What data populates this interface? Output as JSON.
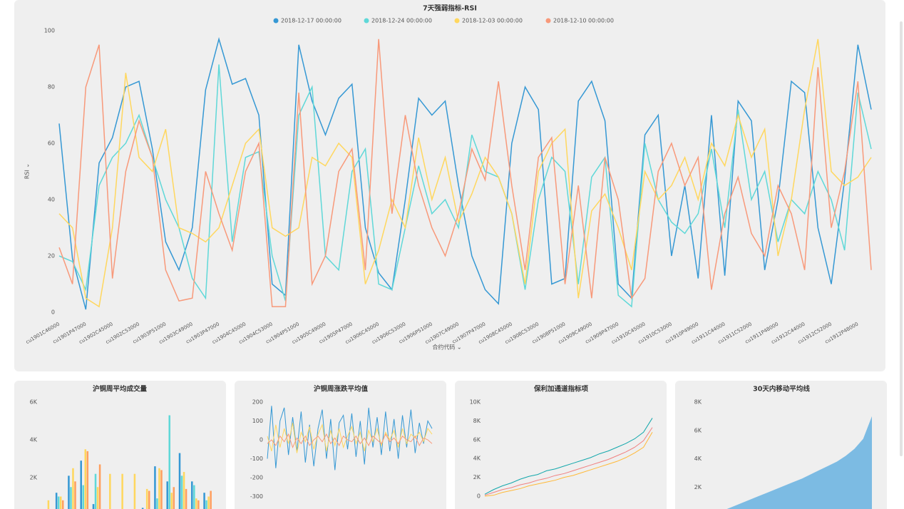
{
  "chart_data": [
    {
      "type": "line",
      "title": "7天强弱指标-RSI",
      "x_label": "合约代码 ⌄",
      "y_label": "RSI ⌄",
      "categories": [
        "cu1901C46000",
        null,
        "cu1901P47000",
        null,
        "cu1902C45000",
        null,
        "cu1902C53000",
        null,
        "cu1903P51000",
        null,
        "cu1903C49000",
        null,
        "cu1903P47000",
        null,
        "cu1904C45000",
        null,
        "cu1904C53000",
        null,
        "cu1904P51000",
        null,
        "cu1905C49000",
        null,
        "cu1905P47000",
        null,
        "cu1906C45000",
        null,
        "cu1906C53000",
        null,
        "cu1906P51000",
        null,
        "cu1907C49000",
        null,
        "cu1907P47000",
        null,
        "cu1908C45000",
        null,
        "cu1908C53000",
        null,
        "cu1908P51000",
        null,
        "cu1909C49000",
        null,
        "cu1909P47000",
        null,
        "cu1910C45000",
        null,
        "cu1910C53000",
        null,
        "cu1910P49000",
        null,
        "cu1911C44000",
        null,
        "cu1911C52000",
        null,
        "cu1911P48000",
        null,
        "cu1912C44000",
        null,
        "cu1912C52000",
        null,
        "cu1912P48000",
        null
      ],
      "series": [
        {
          "name": "2018-12-17 00:00:00",
          "color": "#3598d4",
          "values": [
            67,
            19,
            1,
            53,
            62,
            80,
            82,
            58,
            25,
            15,
            30,
            79,
            97,
            81,
            83,
            70,
            10,
            6,
            95,
            75,
            63,
            76,
            81,
            30,
            14,
            8,
            40,
            76,
            70,
            75,
            45,
            20,
            8,
            3,
            60,
            80,
            72,
            10,
            12,
            75,
            82,
            68,
            10,
            5,
            63,
            70,
            20,
            45,
            12,
            70,
            13,
            75,
            68,
            15,
            40,
            82,
            78,
            30,
            10,
            47,
            95,
            72
          ]
        },
        {
          "name": "2018-12-24 00:00:00",
          "color": "#5fd8d8",
          "values": [
            20,
            18,
            8,
            45,
            55,
            60,
            70,
            55,
            40,
            30,
            12,
            5,
            88,
            25,
            55,
            57,
            20,
            4,
            70,
            80,
            20,
            15,
            50,
            58,
            10,
            8,
            30,
            52,
            35,
            40,
            30,
            63,
            50,
            48,
            35,
            8,
            40,
            55,
            50,
            10,
            48,
            55,
            6,
            2,
            60,
            40,
            32,
            28,
            35,
            58,
            30,
            72,
            40,
            50,
            25,
            40,
            35,
            50,
            40,
            22,
            78,
            58
          ]
        },
        {
          "name": "2018-12-03 00:00:00",
          "color": "#ffd75e",
          "values": [
            35,
            30,
            5,
            2,
            30,
            85,
            55,
            50,
            65,
            30,
            28,
            25,
            30,
            45,
            60,
            65,
            30,
            27,
            30,
            55,
            52,
            60,
            55,
            10,
            22,
            40,
            30,
            62,
            40,
            55,
            32,
            42,
            55,
            48,
            35,
            10,
            50,
            60,
            65,
            5,
            36,
            42,
            30,
            15,
            50,
            40,
            45,
            55,
            40,
            60,
            52,
            70,
            55,
            65,
            20,
            40,
            72,
            97,
            50,
            45,
            48,
            55
          ]
        },
        {
          "name": "2018-12-10 00:00:00",
          "color": "#f8997a",
          "values": [
            23,
            10,
            80,
            95,
            12,
            50,
            68,
            55,
            15,
            4,
            5,
            50,
            35,
            22,
            50,
            60,
            2,
            2,
            78,
            10,
            20,
            50,
            58,
            15,
            97,
            35,
            70,
            45,
            30,
            20,
            35,
            58,
            47,
            82,
            45,
            15,
            55,
            62,
            10,
            45,
            5,
            55,
            40,
            5,
            12,
            50,
            60,
            45,
            55,
            8,
            35,
            48,
            28,
            20,
            45,
            35,
            15,
            87,
            30,
            50,
            82,
            15
          ]
        }
      ],
      "ylim": [
        0,
        100
      ],
      "yticks": [
        0,
        20,
        40,
        60,
        80,
        100
      ],
      "legend": "top"
    },
    {
      "type": "bar",
      "title": "沪铜周平均成交量",
      "categories": [
        null,
        null,
        null,
        null,
        null,
        null,
        null,
        null,
        null,
        null,
        null,
        null,
        null,
        null
      ],
      "series": [
        {
          "color": "#3598d4",
          "values": [
            100,
            1200,
            2100,
            2900,
            600,
            100,
            0,
            0,
            400,
            2600,
            1800,
            3300,
            1800,
            1200
          ]
        },
        {
          "color": "#5fd8d8",
          "values": [
            300,
            1000,
            1500,
            1600,
            2200,
            0,
            0,
            0,
            300,
            900,
            5300,
            2100,
            1600,
            800
          ]
        },
        {
          "color": "#ffd75e",
          "values": [
            800,
            1000,
            2500,
            3500,
            1500,
            2200,
            2200,
            2200,
            1400,
            2500,
            1200,
            2300,
            900,
            1000
          ]
        },
        {
          "color": "#ff9f5e",
          "values": [
            0,
            800,
            1800,
            3400,
            2700,
            0,
            0,
            0,
            1300,
            2400,
            1500,
            1400,
            800,
            1300
          ]
        }
      ],
      "ylim": [
        0,
        6000
      ],
      "yticks": [
        {
          "value": 2000,
          "label": "2K"
        },
        {
          "value": 4000,
          "label": "4K"
        },
        {
          "value": 6000,
          "label": "6K"
        }
      ]
    },
    {
      "type": "line",
      "title": "沪铜周涨跌平均值",
      "categories": [
        null,
        null,
        null,
        null,
        null,
        null,
        null,
        null,
        null,
        null,
        null,
        null,
        null,
        null,
        null,
        null,
        null,
        null,
        null,
        null,
        null,
        null,
        null,
        null,
        null,
        null,
        null,
        null,
        null,
        null,
        null,
        null,
        null,
        null,
        null,
        null,
        null,
        null,
        null,
        null
      ],
      "series": [
        {
          "color": "#3598d4",
          "values": [
            -100,
            180,
            -150,
            100,
            170,
            -80,
            120,
            -60,
            150,
            -120,
            80,
            -140,
            60,
            160,
            -100,
            110,
            -160,
            90,
            130,
            -50,
            140,
            -90,
            100,
            -130,
            170,
            -40,
            120,
            -80,
            150,
            -60,
            110,
            -100,
            130,
            -40,
            160,
            -70,
            90,
            -20,
            100,
            60
          ]
        },
        {
          "color": "#ffd75e",
          "values": [
            20,
            -60,
            80,
            -40,
            60,
            -20,
            90,
            -70,
            40,
            -10,
            70,
            -50,
            30,
            80,
            -60,
            50,
            -30,
            60,
            -40,
            20,
            70,
            -20,
            40,
            -60,
            50,
            -10,
            60,
            -30,
            40,
            0,
            50,
            -40,
            60,
            -20,
            30,
            10,
            40,
            -10,
            60,
            30
          ]
        },
        {
          "color": "#f8997a",
          "values": [
            -20,
            0,
            -30,
            20,
            -10,
            30,
            -40,
            10,
            -20,
            20,
            -30,
            0,
            20,
            -10,
            30,
            -20,
            10,
            -30,
            20,
            0,
            -10,
            20,
            -20,
            10,
            -30,
            20,
            0,
            -20,
            30,
            -10,
            10,
            -20,
            20,
            0,
            -10,
            20,
            -30,
            10,
            0,
            -20
          ]
        }
      ],
      "ylim": [
        -400,
        200
      ],
      "yticks": [
        -300,
        -200,
        -100,
        0,
        100,
        200
      ]
    },
    {
      "type": "line",
      "title": "保利加通道指标项",
      "categories": [
        null,
        null,
        null,
        null,
        null,
        null,
        null,
        null,
        null,
        null,
        null,
        null,
        null,
        null,
        null,
        null,
        null,
        null,
        null,
        null
      ],
      "series": [
        {
          "color": "#11a7ab",
          "values": [
            200,
            700,
            1100,
            1400,
            1800,
            2100,
            2300,
            2700,
            2900,
            3200,
            3500,
            3800,
            4100,
            4500,
            4800,
            5200,
            5600,
            6100,
            6800,
            8300
          ]
        },
        {
          "color": "#f08080",
          "values": [
            100,
            400,
            700,
            900,
            1200,
            1400,
            1700,
            1900,
            2200,
            2400,
            2700,
            3000,
            3300,
            3600,
            3900,
            4300,
            4700,
            5200,
            5900,
            7300
          ]
        },
        {
          "color": "#ffb938",
          "values": [
            0,
            100,
            400,
            600,
            800,
            1100,
            1300,
            1500,
            1700,
            2000,
            2200,
            2500,
            2800,
            3100,
            3400,
            3700,
            4100,
            4600,
            5200,
            6800
          ]
        }
      ],
      "ylim": [
        0,
        10000
      ],
      "yticks": [
        0,
        {
          "value": 2000,
          "label": "2K"
        },
        {
          "value": 4000,
          "label": "4K"
        },
        {
          "value": 6000,
          "label": "6K"
        },
        {
          "value": 8000,
          "label": "8K"
        },
        {
          "value": 10000,
          "label": "10K"
        }
      ]
    },
    {
      "type": "area",
      "title": "30天内移动平均线",
      "categories": [
        null,
        null,
        null,
        null,
        null,
        null,
        null,
        null,
        null,
        null,
        null,
        null,
        null,
        null,
        null,
        null,
        null,
        null,
        null,
        null
      ],
      "series": [
        {
          "color": "#7cbbe3",
          "values": [
            0,
            150,
            350,
            600,
            850,
            1100,
            1350,
            1600,
            1850,
            2100,
            2350,
            2600,
            2900,
            3200,
            3500,
            3800,
            4200,
            4700,
            5400,
            7000
          ]
        }
      ],
      "ylim": [
        0,
        8000
      ],
      "yticks": [
        {
          "value": 2000,
          "label": "2K"
        },
        {
          "value": 4000,
          "label": "4K"
        },
        {
          "value": 6000,
          "label": "6K"
        },
        {
          "value": 8000,
          "label": "8K"
        }
      ]
    }
  ]
}
